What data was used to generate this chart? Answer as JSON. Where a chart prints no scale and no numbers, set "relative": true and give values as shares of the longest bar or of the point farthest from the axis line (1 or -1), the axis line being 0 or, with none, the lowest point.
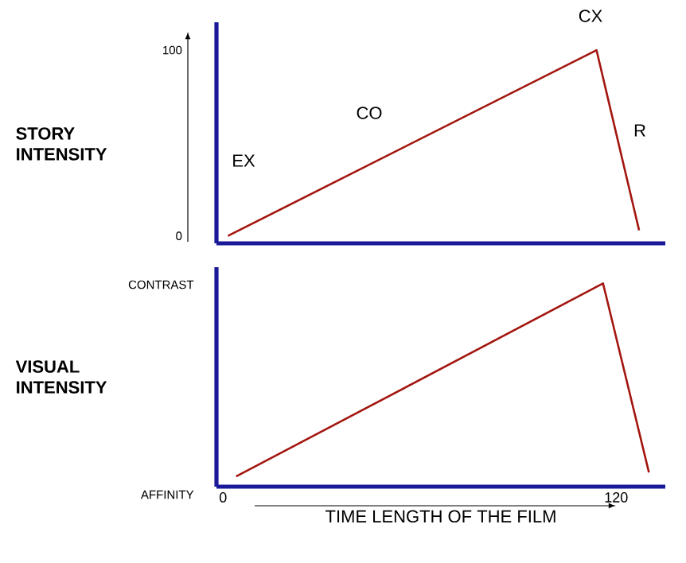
{
  "chart_data": [
    {
      "type": "line",
      "ylabel": "STORY INTENSITY",
      "xlim": [
        -2,
        135
      ],
      "ylim": [
        -4,
        115
      ],
      "yticks": [
        0,
        100
      ],
      "tick_labels": "y",
      "series": [
        {
          "color": "#a3160f",
          "x": [
            1.5,
            114,
            127
          ],
          "values": [
            0,
            100,
            3
          ]
        }
      ],
      "annotations": [
        "EX",
        "CO",
        "CX",
        "R"
      ]
    },
    {
      "type": "line",
      "ylabel": "VISUAL INTENSITY",
      "xlabel": "TIME LENGTH OF THE FILM",
      "xlim": [
        -2,
        135
      ],
      "relative": true,
      "xticks": [
        0,
        120
      ],
      "annotations": [
        "CONTRAST",
        "AFFINITY"
      ],
      "series": [
        {
          "color": "#a3160f",
          "x": [
            4,
            116,
            130
          ],
          "values": [
            0.05,
            1,
            0.07
          ]
        }
      ]
    }
  ]
}
